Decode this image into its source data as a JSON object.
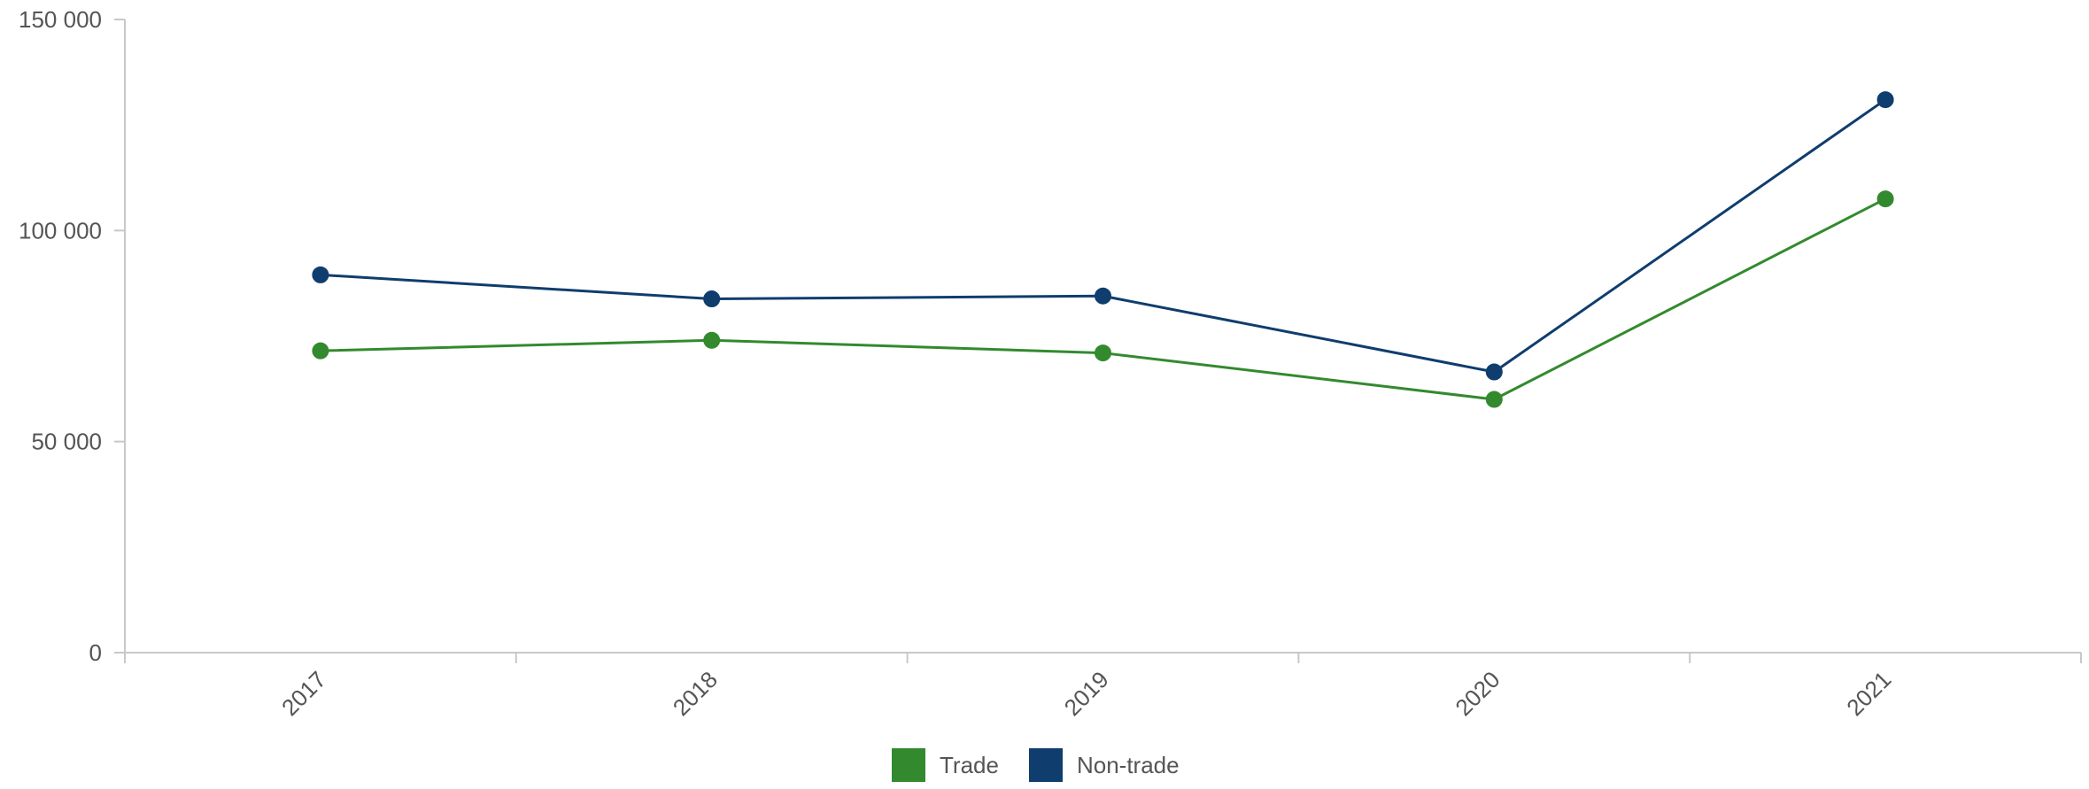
{
  "chart_data": {
    "type": "line",
    "categories": [
      "2017",
      "2018",
      "2019",
      "2020",
      "2021"
    ],
    "series": [
      {
        "name": "Trade",
        "color": "#338a2e",
        "values": [
          71500,
          74000,
          71000,
          60000,
          107500
        ]
      },
      {
        "name": "Non-trade",
        "color": "#0f3d6e",
        "values": [
          89500,
          83800,
          84500,
          66500,
          131000
        ]
      }
    ],
    "ylim": [
      0,
      150000
    ],
    "yticks": [
      0,
      50000,
      100000,
      150000
    ],
    "ytick_labels": [
      "0",
      "50 000",
      "100 000",
      "150 000"
    ],
    "legend_position": "bottom-center",
    "grid": false,
    "title": "",
    "xlabel": "",
    "ylabel": ""
  }
}
